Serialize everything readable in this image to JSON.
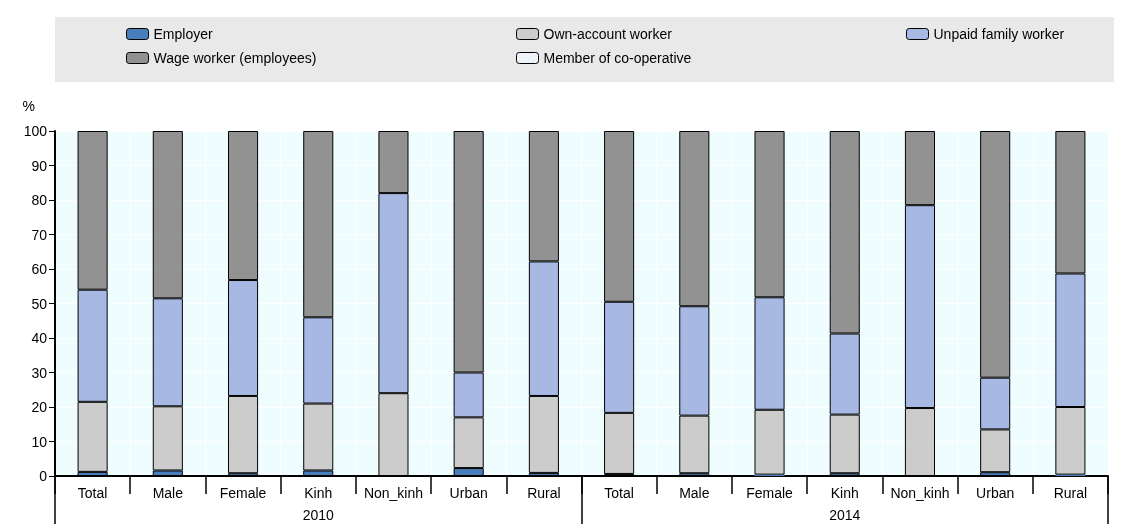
{
  "chart_data": {
    "type": "bar",
    "stacked": true,
    "ylabel": "%",
    "categories": [
      "Total",
      "Male",
      "Female",
      "Kinh",
      "Non_kinh",
      "Urban",
      "Rural",
      "Total",
      "Male",
      "Female",
      "Kinh",
      "Non_kinh",
      "Urban",
      "Rural"
    ],
    "annotations": [
      "2010",
      "2014"
    ],
    "ylim": [
      0,
      100
    ],
    "yticks": [
      0,
      10,
      20,
      30,
      40,
      50,
      60,
      70,
      80,
      90,
      100
    ],
    "grid": true,
    "legend": "top",
    "series": [
      {
        "name": "Employer",
        "color": "#4a7ebb",
        "values": [
          1.2,
          1.6,
          0.8,
          1.6,
          null,
          2.3,
          0.9,
          0.6,
          0.8,
          0.4,
          0.8,
          null,
          1.1,
          0.4
        ]
      },
      {
        "name": "Own-account worker",
        "color": "#cccccc",
        "values": [
          20.3,
          18.6,
          22.4,
          19.4,
          24,
          14.7,
          22.3,
          17.7,
          16.7,
          18.8,
          17,
          19.7,
          12.4,
          19.6
        ]
      },
      {
        "name": "Unpaid family worker",
        "color": "#a7b8e3",
        "values": [
          32.5,
          31.3,
          33.6,
          25,
          58,
          13,
          39,
          32.2,
          31.7,
          32.6,
          23.5,
          58.8,
          15,
          38.7
        ]
      },
      {
        "name": "Wage worker (employees)",
        "color": "#929292",
        "values": [
          46,
          48.5,
          43.2,
          54,
          18,
          70,
          37.8,
          49.5,
          50.8,
          48.2,
          58.7,
          21.5,
          71.5,
          41.3
        ]
      },
      {
        "name": "Member of co-operative",
        "color": "#eef3fa",
        "values": [
          0,
          0,
          0,
          0,
          0,
          0,
          0,
          0,
          0,
          0,
          0,
          0,
          0,
          0
        ]
      }
    ]
  }
}
